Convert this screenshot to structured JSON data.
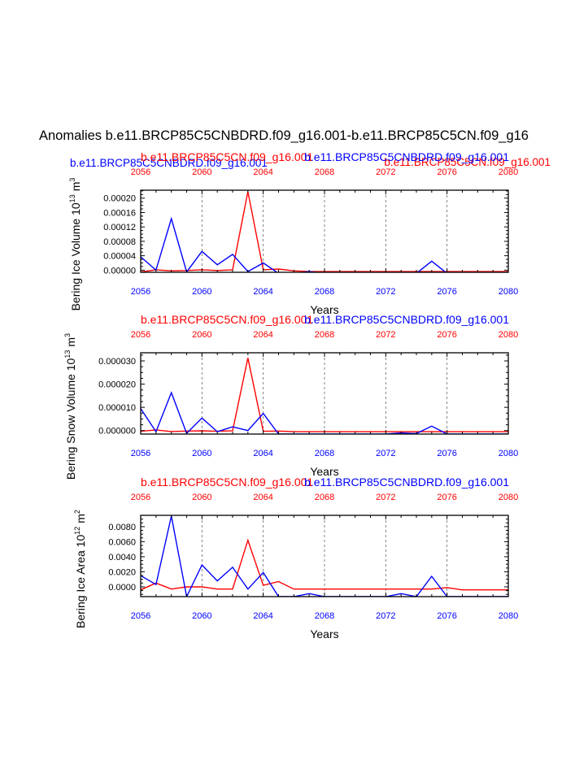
{
  "page": {
    "title": "Anomalies b.e11.BRCP85C5CNBDRD.f09_g16.001-b.e11.BRCP85C5CN.f09_g16",
    "top_left_label": "b.e11.BRCP85C5CNBDRD.f09_g16.001",
    "top_right_label": "b.e11.BRCP85C5CN.f09_g16.001"
  },
  "colors": {
    "control": "#ff0000",
    "experiment": "#0000ff",
    "axis": "#000000"
  },
  "chart_data": [
    {
      "type": "line",
      "title": "Bering Ice Volume",
      "ylabel_main": "Bering Ice Volume 10",
      "ylabel_exp": "13",
      "ylabel_unit": "m",
      "ylabel_unit_exp": "3",
      "xlabel": "Years",
      "ylim": [
        -6e-06,
        0.000222
      ],
      "yticks": [
        0,
        4e-05,
        8e-05,
        0.00012,
        0.00016,
        0.0002
      ],
      "ytick_labels": [
        "0.00000",
        "0.00004",
        "0.00008",
        "0.00012",
        "0.00016",
        "0.00020"
      ],
      "xlim": [
        2056,
        2080
      ],
      "xticks": [
        2056,
        2060,
        2064,
        2068,
        2072,
        2076,
        2080
      ],
      "xtick_labels": [
        "2056",
        "2060",
        "2064",
        "2068",
        "2072",
        "2076",
        "2080"
      ],
      "series": [
        {
          "name": "b.e11.BRCP85C5CN.f09_g16.001",
          "color": "#ff0000",
          "x": [
            2056,
            2057,
            2058,
            2059,
            2060,
            2061,
            2062,
            2063,
            2064,
            2065,
            2066,
            2067,
            2068,
            2069,
            2070,
            2071,
            2072,
            2073,
            2074,
            2075,
            2076,
            2077,
            2078,
            2079,
            2080
          ],
          "values": [
            -5e-06,
            1e-06,
            -2e-06,
            -1e-06,
            1e-06,
            -1e-06,
            1e-06,
            0.000218,
            1e-06,
            3e-06,
            -2e-06,
            -4e-06,
            -4e-06,
            -4e-06,
            -4e-06,
            -4e-06,
            -4e-06,
            -4e-06,
            -4e-06,
            -4e-06,
            -4e-06,
            -4e-06,
            -4e-06,
            -4e-06,
            -4e-06
          ]
        },
        {
          "name": "b.e11.BRCP85C5CNBDRD.f09_g16.001",
          "color": "#0000ff",
          "x": [
            2056,
            2057,
            2058,
            2059,
            2060,
            2061,
            2062,
            2063,
            2064,
            2065,
            2066,
            2067,
            2068,
            2069,
            2070,
            2071,
            2072,
            2073,
            2074,
            2075,
            2076,
            2077,
            2078,
            2079,
            2080
          ],
          "values": [
            3.7e-05,
            0,
            0.000143,
            -5e-06,
            5.2e-05,
            1.5e-05,
            4.4e-05,
            -4e-06,
            2e-05,
            -9e-06,
            -9e-06,
            -4e-06,
            -9e-06,
            -9e-06,
            -9e-06,
            -9e-06,
            -9e-06,
            -7e-06,
            -9e-06,
            2.5e-05,
            -9e-06,
            -9e-06,
            -9e-06,
            -9e-06,
            -9e-06
          ]
        }
      ]
    },
    {
      "type": "line",
      "title": "Bering Snow Volume",
      "ylabel_main": "Bering Snow Volume 10",
      "ylabel_exp": "13",
      "ylabel_unit": "m",
      "ylabel_unit_exp": "3",
      "xlabel": "Years",
      "ylim": [
        -1.5e-06,
        3.35e-05
      ],
      "yticks": [
        0,
        1e-05,
        2e-05,
        3e-05
      ],
      "ytick_labels": [
        "0.000000",
        "0.000010",
        "0.000020",
        "0.000030"
      ],
      "xlim": [
        2056,
        2080
      ],
      "xticks": [
        2056,
        2060,
        2064,
        2068,
        2072,
        2076,
        2080
      ],
      "xtick_labels": [
        "2056",
        "2060",
        "2064",
        "2068",
        "2072",
        "2076",
        "2080"
      ],
      "series": [
        {
          "name": "b.e11.BRCP85C5CN.f09_g16.001",
          "color": "#ff0000",
          "x": [
            2056,
            2057,
            2058,
            2059,
            2060,
            2061,
            2062,
            2063,
            2064,
            2065,
            2066,
            2067,
            2068,
            2069,
            2070,
            2071,
            2072,
            2073,
            2074,
            2075,
            2076,
            2077,
            2078,
            2079,
            2080
          ],
          "values": [
            -3e-07,
            3e-07,
            -4e-07,
            -2e-07,
            -1e-07,
            -3e-07,
            -1e-07,
            3.13e-05,
            -3e-07,
            -2e-07,
            -5e-07,
            -5e-07,
            -5e-07,
            -5e-07,
            -5e-07,
            -5e-07,
            -5e-07,
            -5e-07,
            -5e-07,
            -5e-07,
            -5e-07,
            -5e-07,
            -5e-07,
            -5e-07,
            -5e-07
          ]
        },
        {
          "name": "b.e11.BRCP85C5CNBDRD.f09_g16.001",
          "color": "#0000ff",
          "x": [
            2056,
            2057,
            2058,
            2059,
            2060,
            2061,
            2062,
            2063,
            2064,
            2065,
            2066,
            2067,
            2068,
            2069,
            2070,
            2071,
            2072,
            2073,
            2074,
            2075,
            2076,
            2077,
            2078,
            2079,
            2080
          ],
          "values": [
            9.5e-06,
            -5e-07,
            1.63e-05,
            -1.2e-06,
            5.4e-06,
            -5e-07,
            1.6e-06,
            0,
            7.4e-06,
            -1.5e-06,
            -1.5e-06,
            -1.5e-06,
            -1.5e-06,
            -1.5e-06,
            -1.5e-06,
            -1.5e-06,
            -1.5e-06,
            -1e-06,
            -1.3e-06,
            1.9e-06,
            -1.5e-06,
            -1.5e-06,
            -1.5e-06,
            -1.5e-06,
            -1.5e-06
          ]
        }
      ]
    },
    {
      "type": "line",
      "title": "Bering Ice Area",
      "ylabel_main": "Bering Ice Area 10",
      "ylabel_exp": "12",
      "ylabel_unit": "m",
      "ylabel_unit_exp": "2",
      "xlabel": "Years",
      "ylim": [
        -0.0013,
        0.0095
      ],
      "yticks": [
        0,
        0.002,
        0.004,
        0.006,
        0.008
      ],
      "ytick_labels": [
        "0.0000",
        "0.0020",
        "0.0040",
        "0.0060",
        "0.0080"
      ],
      "xlim": [
        2056,
        2080
      ],
      "xticks": [
        2056,
        2060,
        2064,
        2068,
        2072,
        2076,
        2080
      ],
      "xtick_labels": [
        "2056",
        "2060",
        "2064",
        "2068",
        "2072",
        "2076",
        "2080"
      ],
      "series": [
        {
          "name": "b.e11.BRCP85C5CN.f09_g16.001",
          "color": "#ff0000",
          "x": [
            2056,
            2057,
            2058,
            2059,
            2060,
            2061,
            2062,
            2063,
            2064,
            2065,
            2066,
            2067,
            2068,
            2069,
            2070,
            2071,
            2072,
            2073,
            2074,
            2075,
            2076,
            2077,
            2078,
            2079,
            2080
          ],
          "values": [
            -0.0004,
            0.0005,
            -0.0003,
            0,
            0,
            -0.0003,
            -0.0003,
            0.0062,
            0.0002,
            0.0007,
            -0.0003,
            -0.0003,
            -0.0003,
            -0.0003,
            -0.0003,
            -0.0003,
            -0.0003,
            -0.0003,
            -0.0003,
            -0.0003,
            -0.0001,
            -0.0004,
            -0.0004,
            -0.0004,
            -0.0004
          ]
        },
        {
          "name": "b.e11.BRCP85C5CNBDRD.f09_g16.001",
          "color": "#0000ff",
          "x": [
            2056,
            2057,
            2058,
            2059,
            2060,
            2061,
            2062,
            2063,
            2064,
            2065,
            2066,
            2067,
            2068,
            2069,
            2070,
            2071,
            2072,
            2073,
            2074,
            2075,
            2076,
            2077,
            2078,
            2079,
            2080
          ],
          "values": [
            0.0015,
            0.0003,
            0.0094,
            -0.0013,
            0.0029,
            0.0008,
            0.0026,
            -0.0003,
            0.0019,
            -0.0013,
            -0.0013,
            -0.0009,
            -0.0013,
            -0.0013,
            -0.0013,
            -0.0013,
            -0.0013,
            -0.0009,
            -0.0013,
            0.0014,
            -0.0013,
            -0.0013,
            -0.0013,
            -0.0013,
            -0.0013
          ]
        }
      ]
    }
  ]
}
